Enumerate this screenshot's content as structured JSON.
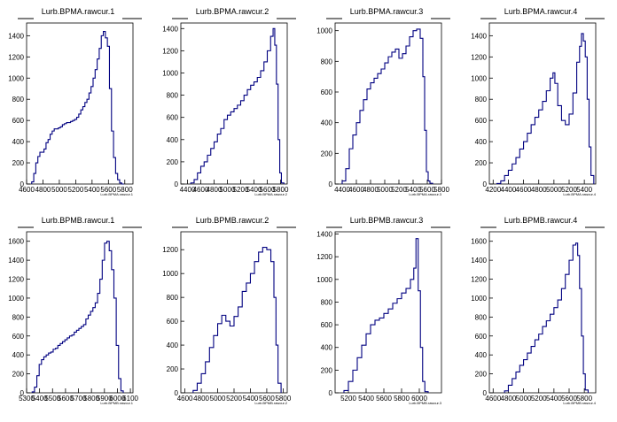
{
  "canvas": {
    "background": "#ffffff",
    "line_color": "#000080",
    "axis_color": "#000000"
  },
  "chart_data": [
    {
      "type": "histogram",
      "title": "Lurb.BPMA.rawcur.1",
      "xlabel": "Lurb.BPMA.rawcur.1",
      "xlim": [
        4600,
        5900
      ],
      "ylim": [
        0,
        1520
      ],
      "xticks": [
        4600,
        4800,
        5000,
        5200,
        5400,
        5600,
        5800
      ],
      "yticks": [
        0,
        200,
        400,
        600,
        800,
        1000,
        1200,
        1400
      ],
      "x": [
        4675,
        4700,
        4725,
        4750,
        4775,
        4800,
        4825,
        4850,
        4875,
        4900,
        4925,
        4950,
        4975,
        5000,
        5025,
        5050,
        5075,
        5100,
        5125,
        5150,
        5175,
        5200,
        5225,
        5250,
        5275,
        5300,
        5325,
        5350,
        5375,
        5400,
        5425,
        5450,
        5475,
        5500,
        5525,
        5550,
        5575,
        5600,
        5625,
        5650,
        5675,
        5700,
        5725,
        5750,
        5775
      ],
      "y": [
        20,
        100,
        200,
        260,
        300,
        300,
        330,
        390,
        420,
        470,
        500,
        520,
        520,
        530,
        540,
        560,
        570,
        580,
        580,
        590,
        600,
        610,
        630,
        660,
        700,
        730,
        770,
        800,
        860,
        920,
        1000,
        1080,
        1180,
        1280,
        1400,
        1440,
        1380,
        1300,
        900,
        500,
        250,
        100,
        40,
        10,
        0
      ]
    },
    {
      "type": "histogram",
      "title": "Lurb.BPMA.rawcur.2",
      "xlabel": "Lurb.BPMA.rawcur.2",
      "xlim": [
        4300,
        5900
      ],
      "ylim": [
        0,
        1450
      ],
      "xticks": [
        4400,
        4600,
        4800,
        5000,
        5200,
        5400,
        5600,
        5800
      ],
      "yticks": [
        0,
        200,
        400,
        600,
        800,
        1000,
        1200,
        1400
      ],
      "x": [
        4475,
        4525,
        4575,
        4625,
        4675,
        4725,
        4775,
        4825,
        4875,
        4925,
        4975,
        5025,
        5075,
        5125,
        5175,
        5225,
        5275,
        5325,
        5375,
        5425,
        5475,
        5525,
        5575,
        5625,
        5675,
        5700,
        5725,
        5750,
        5775,
        5800,
        5825
      ],
      "y": [
        10,
        40,
        100,
        160,
        200,
        260,
        320,
        380,
        450,
        500,
        580,
        620,
        650,
        680,
        710,
        750,
        800,
        850,
        890,
        920,
        960,
        1020,
        1100,
        1200,
        1330,
        1400,
        1250,
        900,
        400,
        100,
        10
      ]
    },
    {
      "type": "histogram",
      "title": "Lurb.BPMA.rawcur.3",
      "xlabel": "Lurb.BPMA.rawcur.3",
      "xlim": [
        4300,
        5800
      ],
      "ylim": [
        0,
        1050
      ],
      "xticks": [
        4400,
        4600,
        4800,
        5000,
        5200,
        5400,
        5600,
        5800
      ],
      "yticks": [
        0,
        200,
        400,
        600,
        800,
        1000
      ],
      "x": [
        4425,
        4475,
        4525,
        4575,
        4625,
        4675,
        4725,
        4775,
        4825,
        4875,
        4925,
        4975,
        5025,
        5075,
        5125,
        5175,
        5225,
        5275,
        5325,
        5375,
        5425,
        5475,
        5525,
        5550,
        5575,
        5600,
        5625,
        5650
      ],
      "y": [
        20,
        100,
        230,
        320,
        400,
        480,
        550,
        620,
        660,
        690,
        720,
        750,
        790,
        830,
        860,
        880,
        820,
        850,
        900,
        960,
        1000,
        1010,
        950,
        700,
        350,
        80,
        20,
        5
      ]
    },
    {
      "type": "histogram",
      "title": "Lurb.BPMA.rawcur.4",
      "xlabel": "Lurb.BPMA.rawcur.4",
      "xlim": [
        4150,
        5550
      ],
      "ylim": [
        0,
        1520
      ],
      "xticks": [
        4200,
        4400,
        4600,
        4800,
        5000,
        5200,
        5400
      ],
      "yticks": [
        0,
        200,
        400,
        600,
        800,
        1000,
        1200,
        1400
      ],
      "x": [
        4275,
        4325,
        4375,
        4425,
        4475,
        4525,
        4575,
        4625,
        4675,
        4725,
        4775,
        4825,
        4875,
        4925,
        4975,
        5000,
        5025,
        5075,
        5125,
        5175,
        5225,
        5275,
        5325,
        5350,
        5375,
        5400,
        5425,
        5450,
        5475,
        5500
      ],
      "y": [
        5,
        30,
        80,
        130,
        190,
        250,
        330,
        400,
        480,
        560,
        630,
        700,
        780,
        880,
        1000,
        1050,
        950,
        740,
        600,
        560,
        660,
        860,
        1150,
        1300,
        1420,
        1350,
        1200,
        800,
        350,
        80
      ]
    },
    {
      "type": "histogram",
      "title": "Lurb.BPMB.rawcur.1",
      "xlabel": "Lurb.BPMB.rawcur.1",
      "xlim": [
        5300,
        6120
      ],
      "ylim": [
        0,
        1700
      ],
      "xticks": [
        5300,
        5400,
        5500,
        5600,
        5700,
        5800,
        5900,
        6000,
        6100
      ],
      "xticklabels": [
        "5300",
        "5400",
        "5500",
        "5600",
        "5700",
        "5800",
        "5900",
        "6000",
        "6100"
      ],
      "yticks": [
        0,
        200,
        400,
        600,
        800,
        1000,
        1200,
        1400,
        1600
      ],
      "x": [
        5352,
        5370,
        5388,
        5406,
        5424,
        5442,
        5460,
        5478,
        5496,
        5514,
        5532,
        5550,
        5568,
        5586,
        5604,
        5622,
        5640,
        5658,
        5676,
        5694,
        5712,
        5730,
        5748,
        5766,
        5784,
        5802,
        5820,
        5838,
        5856,
        5874,
        5892,
        5910,
        5928,
        5946,
        5964,
        5982,
        6000,
        6018,
        6036
      ],
      "y": [
        10,
        60,
        180,
        300,
        350,
        380,
        400,
        420,
        430,
        460,
        470,
        500,
        520,
        540,
        560,
        580,
        600,
        610,
        640,
        660,
        680,
        700,
        720,
        780,
        820,
        860,
        900,
        950,
        1050,
        1200,
        1400,
        1580,
        1600,
        1500,
        1300,
        1000,
        500,
        150,
        20
      ]
    },
    {
      "type": "histogram",
      "title": "Lurb.BPMB.rawcur.2",
      "xlabel": "Lurb.BPMB.rawcur.2",
      "xlim": [
        4550,
        5850
      ],
      "ylim": [
        0,
        1350
      ],
      "xticks": [
        4600,
        4800,
        5000,
        5200,
        5400,
        5600,
        5800
      ],
      "yticks": [
        0,
        200,
        400,
        600,
        800,
        1000,
        1200
      ],
      "x": [
        4725,
        4775,
        4825,
        4875,
        4925,
        4975,
        5025,
        5075,
        5125,
        5175,
        5225,
        5275,
        5325,
        5375,
        5425,
        5475,
        5525,
        5575,
        5625,
        5675,
        5700,
        5725,
        5750
      ],
      "y": [
        20,
        80,
        160,
        260,
        380,
        480,
        580,
        650,
        600,
        560,
        640,
        720,
        850,
        920,
        1000,
        1100,
        1180,
        1220,
        1200,
        1100,
        800,
        400,
        80
      ]
    },
    {
      "type": "histogram",
      "title": "Lurb.BPMB.rawcur.3",
      "xlabel": "Lurb.BPMB.rawcur.3",
      "xlim": [
        5050,
        6250
      ],
      "ylim": [
        0,
        1420
      ],
      "xticks": [
        5200,
        5400,
        5600,
        5800,
        6000
      ],
      "yticks": [
        0,
        200,
        400,
        600,
        800,
        1000,
        1200,
        1400
      ],
      "x": [
        5175,
        5225,
        5275,
        5325,
        5375,
        5425,
        5475,
        5525,
        5575,
        5625,
        5675,
        5725,
        5775,
        5825,
        5875,
        5925,
        5950,
        5975,
        6000,
        6025,
        6050,
        6075
      ],
      "y": [
        20,
        100,
        200,
        310,
        420,
        520,
        600,
        640,
        660,
        700,
        740,
        790,
        830,
        880,
        920,
        1000,
        1100,
        1360,
        900,
        400,
        100,
        10
      ]
    },
    {
      "type": "histogram",
      "title": "Lurb.BPMB.rawcur.4",
      "xlabel": "Lurb.BPMB.rawcur.4",
      "xlim": [
        4550,
        5950
      ],
      "ylim": [
        0,
        1700
      ],
      "xticks": [
        4600,
        4800,
        5000,
        5200,
        5400,
        5600,
        5800
      ],
      "yticks": [
        0,
        200,
        400,
        600,
        800,
        1000,
        1200,
        1400,
        1600
      ],
      "x": [
        4775,
        4825,
        4875,
        4925,
        4975,
        5025,
        5075,
        5125,
        5175,
        5225,
        5275,
        5325,
        5375,
        5425,
        5475,
        5525,
        5575,
        5625,
        5675,
        5700,
        5725,
        5750,
        5775,
        5800,
        5825
      ],
      "y": [
        20,
        80,
        150,
        220,
        290,
        350,
        420,
        490,
        560,
        620,
        700,
        760,
        830,
        900,
        980,
        1100,
        1250,
        1400,
        1560,
        1580,
        1450,
        1100,
        600,
        200,
        30
      ]
    }
  ]
}
